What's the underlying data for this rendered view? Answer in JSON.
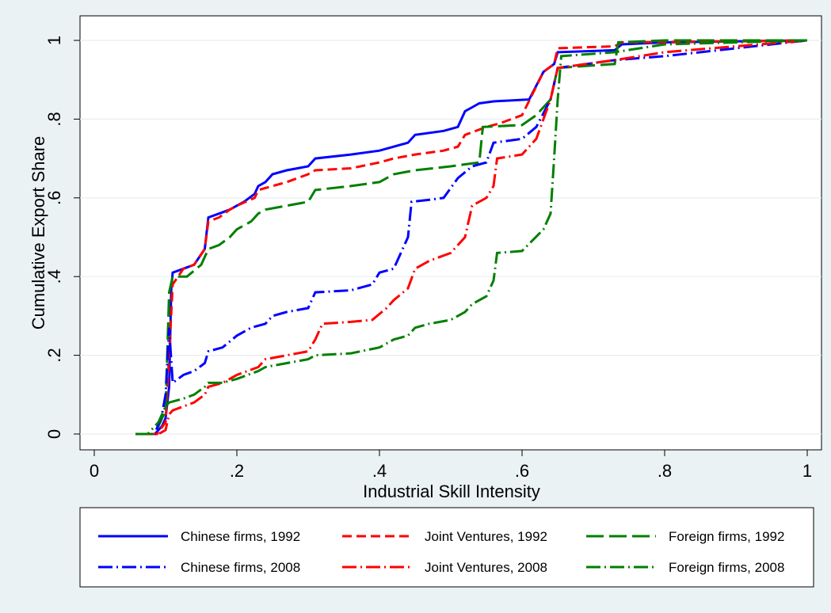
{
  "chart_data": {
    "type": "line",
    "xlabel": "Industrial Skill Intensity",
    "ylabel": "Cumulative Export Share",
    "xlim": [
      0,
      1
    ],
    "ylim": [
      0,
      1
    ],
    "xticks": [
      0,
      0.2,
      0.4,
      0.6,
      0.8,
      1
    ],
    "xtick_labels": [
      "0",
      ".2",
      ".4",
      ".6",
      ".8",
      "1"
    ],
    "yticks": [
      0,
      0.2,
      0.4,
      0.6,
      0.8,
      1
    ],
    "ytick_labels": [
      "0",
      ".2",
      ".4",
      ".6",
      ".8",
      "1"
    ],
    "grid": "horizontal",
    "legend_placement": "bottom",
    "series": [
      {
        "name": "Chinese firms, 1992",
        "color": "#0000ff",
        "dash": "solid",
        "points": [
          [
            0.058,
            0
          ],
          [
            0.085,
            0
          ],
          [
            0.095,
            0.02
          ],
          [
            0.1,
            0.04
          ],
          [
            0.105,
            0.12
          ],
          [
            0.108,
            0.37
          ],
          [
            0.11,
            0.41
          ],
          [
            0.125,
            0.42
          ],
          [
            0.14,
            0.43
          ],
          [
            0.155,
            0.47
          ],
          [
            0.16,
            0.55
          ],
          [
            0.175,
            0.56
          ],
          [
            0.19,
            0.57
          ],
          [
            0.2,
            0.58
          ],
          [
            0.21,
            0.59
          ],
          [
            0.225,
            0.61
          ],
          [
            0.23,
            0.63
          ],
          [
            0.24,
            0.64
          ],
          [
            0.25,
            0.66
          ],
          [
            0.27,
            0.67
          ],
          [
            0.3,
            0.68
          ],
          [
            0.31,
            0.7
          ],
          [
            0.36,
            0.71
          ],
          [
            0.4,
            0.72
          ],
          [
            0.42,
            0.73
          ],
          [
            0.44,
            0.74
          ],
          [
            0.45,
            0.76
          ],
          [
            0.49,
            0.77
          ],
          [
            0.51,
            0.78
          ],
          [
            0.52,
            0.82
          ],
          [
            0.53,
            0.83
          ],
          [
            0.54,
            0.84
          ],
          [
            0.56,
            0.845
          ],
          [
            0.61,
            0.85
          ],
          [
            0.63,
            0.92
          ],
          [
            0.645,
            0.94
          ],
          [
            0.65,
            0.97
          ],
          [
            0.73,
            0.975
          ],
          [
            0.74,
            0.99
          ],
          [
            0.8,
            0.995
          ],
          [
            1,
            1
          ]
        ]
      },
      {
        "name": "Joint Ventures, 1992",
        "color": "#ff0000",
        "dash": "dash",
        "points": [
          [
            0.058,
            0
          ],
          [
            0.088,
            0
          ],
          [
            0.1,
            0.03
          ],
          [
            0.105,
            0.2
          ],
          [
            0.11,
            0.38
          ],
          [
            0.125,
            0.42
          ],
          [
            0.14,
            0.43
          ],
          [
            0.155,
            0.47
          ],
          [
            0.16,
            0.54
          ],
          [
            0.175,
            0.55
          ],
          [
            0.19,
            0.57
          ],
          [
            0.2,
            0.58
          ],
          [
            0.225,
            0.6
          ],
          [
            0.23,
            0.62
          ],
          [
            0.25,
            0.63
          ],
          [
            0.27,
            0.64
          ],
          [
            0.3,
            0.66
          ],
          [
            0.31,
            0.67
          ],
          [
            0.36,
            0.675
          ],
          [
            0.4,
            0.69
          ],
          [
            0.42,
            0.7
          ],
          [
            0.45,
            0.71
          ],
          [
            0.49,
            0.72
          ],
          [
            0.51,
            0.73
          ],
          [
            0.52,
            0.76
          ],
          [
            0.55,
            0.78
          ],
          [
            0.57,
            0.79
          ],
          [
            0.6,
            0.81
          ],
          [
            0.63,
            0.92
          ],
          [
            0.645,
            0.94
          ],
          [
            0.65,
            0.98
          ],
          [
            0.73,
            0.985
          ],
          [
            0.74,
            0.995
          ],
          [
            1,
            1
          ]
        ]
      },
      {
        "name": "Foreign firms, 1992",
        "color": "#007f00",
        "dash": "longdash",
        "points": [
          [
            0.058,
            0
          ],
          [
            0.082,
            0
          ],
          [
            0.09,
            0.02
          ],
          [
            0.1,
            0.06
          ],
          [
            0.105,
            0.36
          ],
          [
            0.11,
            0.4
          ],
          [
            0.13,
            0.4
          ],
          [
            0.15,
            0.43
          ],
          [
            0.16,
            0.47
          ],
          [
            0.175,
            0.48
          ],
          [
            0.19,
            0.5
          ],
          [
            0.2,
            0.52
          ],
          [
            0.22,
            0.54
          ],
          [
            0.23,
            0.56
          ],
          [
            0.24,
            0.57
          ],
          [
            0.27,
            0.58
          ],
          [
            0.3,
            0.59
          ],
          [
            0.31,
            0.62
          ],
          [
            0.36,
            0.63
          ],
          [
            0.4,
            0.64
          ],
          [
            0.42,
            0.66
          ],
          [
            0.45,
            0.67
          ],
          [
            0.5,
            0.68
          ],
          [
            0.54,
            0.69
          ],
          [
            0.545,
            0.78
          ],
          [
            0.6,
            0.785
          ],
          [
            0.62,
            0.81
          ],
          [
            0.64,
            0.85
          ],
          [
            0.65,
            0.93
          ],
          [
            0.73,
            0.94
          ],
          [
            0.735,
            0.995
          ],
          [
            0.8,
            1
          ],
          [
            1,
            1
          ]
        ]
      },
      {
        "name": "Chinese firms, 2008",
        "color": "#0000ff",
        "dash": "dashdot",
        "points": [
          [
            0.058,
            0
          ],
          [
            0.085,
            0
          ],
          [
            0.095,
            0.05
          ],
          [
            0.1,
            0.1
          ],
          [
            0.105,
            0.27
          ],
          [
            0.11,
            0.13
          ],
          [
            0.125,
            0.15
          ],
          [
            0.14,
            0.16
          ],
          [
            0.155,
            0.18
          ],
          [
            0.16,
            0.21
          ],
          [
            0.18,
            0.22
          ],
          [
            0.2,
            0.25
          ],
          [
            0.22,
            0.27
          ],
          [
            0.24,
            0.28
          ],
          [
            0.25,
            0.3
          ],
          [
            0.27,
            0.31
          ],
          [
            0.3,
            0.32
          ],
          [
            0.31,
            0.36
          ],
          [
            0.36,
            0.365
          ],
          [
            0.39,
            0.38
          ],
          [
            0.4,
            0.41
          ],
          [
            0.42,
            0.42
          ],
          [
            0.44,
            0.5
          ],
          [
            0.445,
            0.59
          ],
          [
            0.47,
            0.595
          ],
          [
            0.49,
            0.6
          ],
          [
            0.51,
            0.65
          ],
          [
            0.53,
            0.68
          ],
          [
            0.55,
            0.69
          ],
          [
            0.56,
            0.74
          ],
          [
            0.6,
            0.75
          ],
          [
            0.62,
            0.78
          ],
          [
            0.64,
            0.85
          ],
          [
            0.65,
            0.93
          ],
          [
            0.73,
            0.95
          ],
          [
            0.8,
            0.96
          ],
          [
            1,
            1
          ]
        ]
      },
      {
        "name": "Joint Ventures, 2008",
        "color": "#ff0000",
        "dash": "dashdot",
        "points": [
          [
            0.058,
            0
          ],
          [
            0.09,
            0
          ],
          [
            0.1,
            0.01
          ],
          [
            0.105,
            0.05
          ],
          [
            0.11,
            0.06
          ],
          [
            0.125,
            0.07
          ],
          [
            0.14,
            0.08
          ],
          [
            0.155,
            0.1
          ],
          [
            0.16,
            0.12
          ],
          [
            0.18,
            0.13
          ],
          [
            0.2,
            0.15
          ],
          [
            0.23,
            0.17
          ],
          [
            0.24,
            0.19
          ],
          [
            0.27,
            0.2
          ],
          [
            0.3,
            0.21
          ],
          [
            0.31,
            0.24
          ],
          [
            0.32,
            0.28
          ],
          [
            0.36,
            0.285
          ],
          [
            0.39,
            0.29
          ],
          [
            0.41,
            0.32
          ],
          [
            0.42,
            0.34
          ],
          [
            0.44,
            0.37
          ],
          [
            0.45,
            0.42
          ],
          [
            0.47,
            0.44
          ],
          [
            0.5,
            0.46
          ],
          [
            0.51,
            0.48
          ],
          [
            0.52,
            0.5
          ],
          [
            0.53,
            0.58
          ],
          [
            0.55,
            0.6
          ],
          [
            0.56,
            0.63
          ],
          [
            0.565,
            0.7
          ],
          [
            0.6,
            0.71
          ],
          [
            0.62,
            0.75
          ],
          [
            0.64,
            0.85
          ],
          [
            0.65,
            0.93
          ],
          [
            0.73,
            0.95
          ],
          [
            0.8,
            0.97
          ],
          [
            1,
            1
          ]
        ]
      },
      {
        "name": "Foreign firms, 2008",
        "color": "#007f00",
        "dash": "dashdot",
        "points": [
          [
            0.058,
            0
          ],
          [
            0.075,
            0
          ],
          [
            0.09,
            0.03
          ],
          [
            0.1,
            0.07
          ],
          [
            0.105,
            0.08
          ],
          [
            0.125,
            0.09
          ],
          [
            0.14,
            0.1
          ],
          [
            0.155,
            0.12
          ],
          [
            0.16,
            0.13
          ],
          [
            0.18,
            0.13
          ],
          [
            0.2,
            0.14
          ],
          [
            0.23,
            0.16
          ],
          [
            0.24,
            0.17
          ],
          [
            0.27,
            0.18
          ],
          [
            0.3,
            0.19
          ],
          [
            0.31,
            0.2
          ],
          [
            0.36,
            0.205
          ],
          [
            0.4,
            0.22
          ],
          [
            0.42,
            0.24
          ],
          [
            0.44,
            0.25
          ],
          [
            0.45,
            0.27
          ],
          [
            0.47,
            0.28
          ],
          [
            0.5,
            0.29
          ],
          [
            0.52,
            0.31
          ],
          [
            0.53,
            0.33
          ],
          [
            0.55,
            0.35
          ],
          [
            0.56,
            0.39
          ],
          [
            0.565,
            0.46
          ],
          [
            0.6,
            0.465
          ],
          [
            0.63,
            0.52
          ],
          [
            0.64,
            0.56
          ],
          [
            0.645,
            0.7
          ],
          [
            0.65,
            0.85
          ],
          [
            0.655,
            0.96
          ],
          [
            0.73,
            0.97
          ],
          [
            0.8,
            0.99
          ],
          [
            1,
            1
          ]
        ]
      }
    ]
  }
}
